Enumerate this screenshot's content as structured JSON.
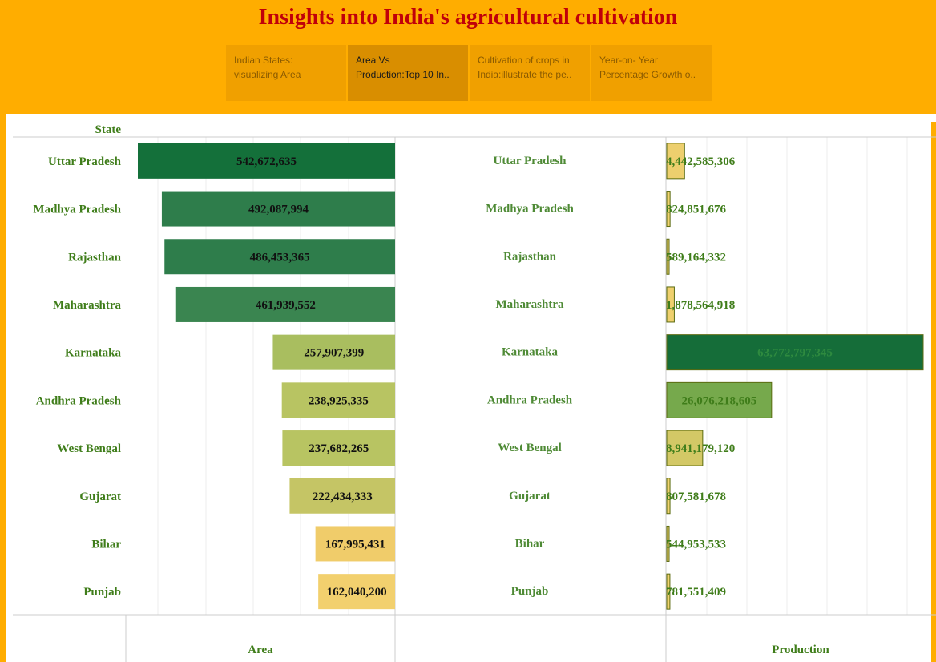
{
  "header": {
    "title": "Insights into India's agricultural cultivation"
  },
  "tabs": [
    {
      "line1": "Indian States:",
      "line2": "visualizing Area"
    },
    {
      "line1": "Area Vs",
      "line2": "Production:Top 10 In.."
    },
    {
      "line1": "Cultivation of crops in",
      "line2": "India:illustrate the pe.."
    },
    {
      "line1": "Year-on- Year",
      "line2": "Percentage Growth o.."
    }
  ],
  "active_tab": 1,
  "colors": {
    "title": "#c0000a",
    "state_label": "#3f7d1a",
    "state_label_mid": "#4e8a35",
    "bar_outline": "#5b6b10"
  },
  "chart_data": {
    "type": "bar",
    "orientation": "horizontal",
    "row_header": "State",
    "categories": [
      "Uttar Pradesh",
      "Madhya Pradesh",
      "Rajasthan",
      "Maharashtra",
      "Karnataka",
      "Andhra Pradesh",
      "West Bengal",
      "Gujarat",
      "Bihar",
      "Punjab"
    ],
    "series": [
      {
        "name": "Area",
        "values": [
          542672635,
          492087994,
          486453365,
          461939552,
          257907399,
          238925335,
          237682265,
          222434333,
          167995431,
          162040200
        ],
        "labels": [
          "542,672,635",
          "492,087,994",
          "486,453,365",
          "461,939,552",
          "257,907,399",
          "238,925,335",
          "237,682,265",
          "222,434,333",
          "167,995,431",
          "162,040,200"
        ],
        "colors": [
          "#14703a",
          "#2e7d4b",
          "#2e7d4b",
          "#3a8550",
          "#a9be5f",
          "#b8c462",
          "#b8c462",
          "#c5c565",
          "#f0cc6a",
          "#f2d06e"
        ],
        "direction": "reversed"
      },
      {
        "name": "Production",
        "values": [
          4442585306,
          824851676,
          589164332,
          1878564918,
          63772797345,
          26076218605,
          8941179120,
          807581678,
          544953533,
          781551409
        ],
        "labels": [
          "4,442,585,306",
          "824,851,676",
          "589,164,332",
          "1,878,564,918",
          "63,772,797,345",
          "26,076,218,605",
          "8,941,179,120",
          "807,581,678",
          "544,953,533",
          "781,551,409"
        ],
        "colors": [
          "#edcf6e",
          "#f0d270",
          "#f0d270",
          "#efd06e",
          "#156d39",
          "#76a94c",
          "#d3c866",
          "#f0d270",
          "#f0d270",
          "#f0d270"
        ]
      }
    ]
  }
}
